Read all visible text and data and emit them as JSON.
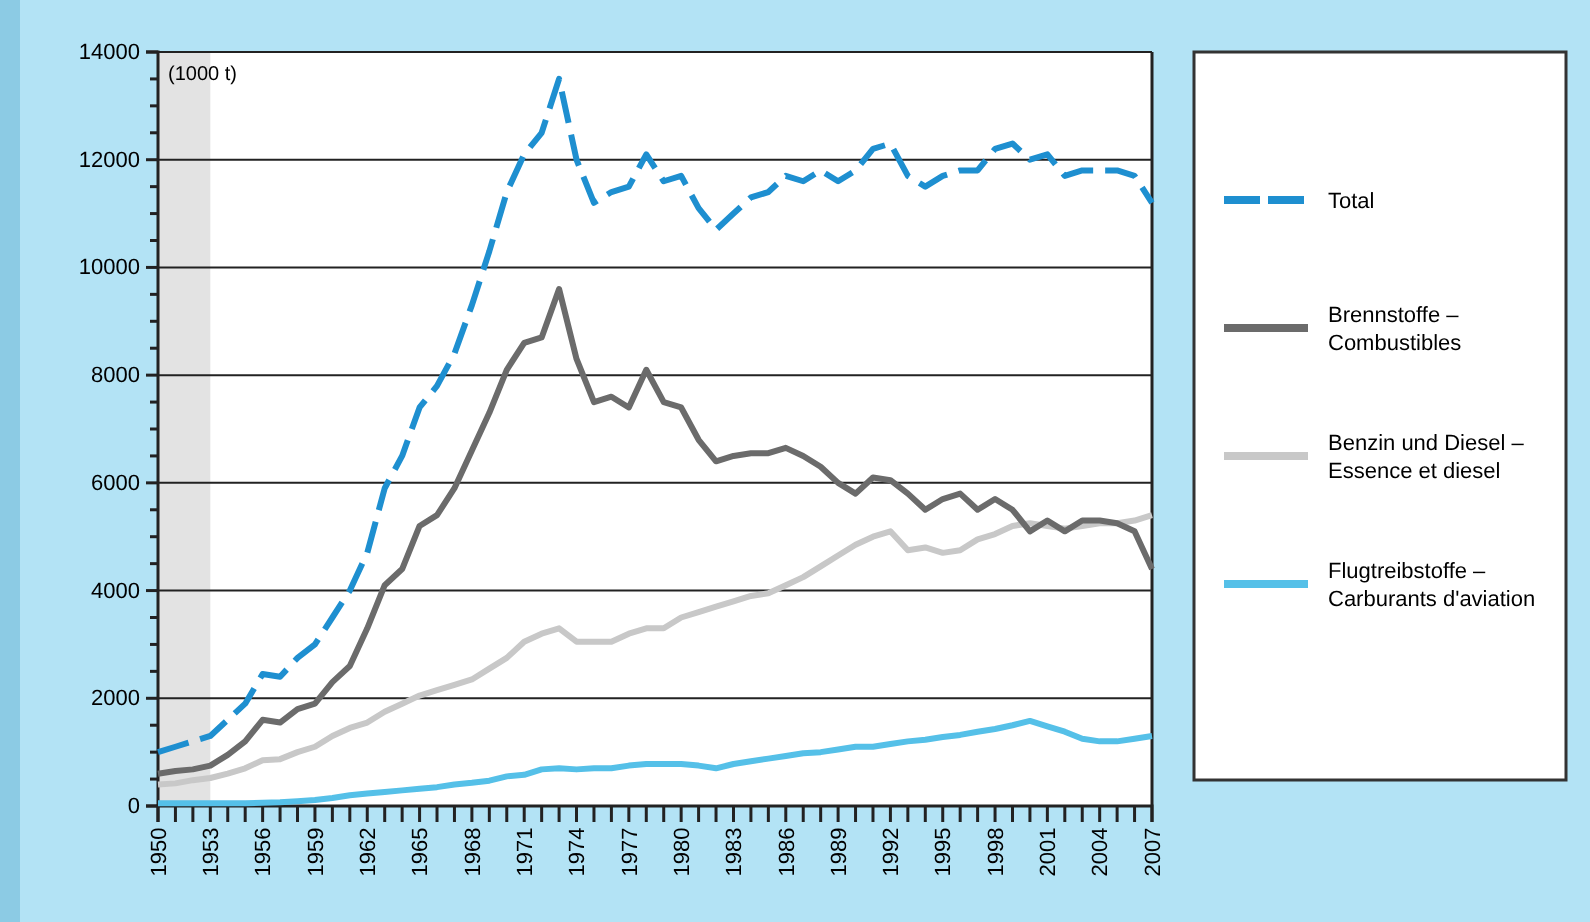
{
  "chart_data": {
    "type": "line",
    "ylabel": "(1000 t)",
    "x": [
      1950,
      1951,
      1952,
      1953,
      1954,
      1955,
      1956,
      1957,
      1958,
      1959,
      1960,
      1961,
      1962,
      1963,
      1964,
      1965,
      1966,
      1967,
      1968,
      1969,
      1970,
      1971,
      1972,
      1973,
      1974,
      1975,
      1976,
      1977,
      1978,
      1979,
      1980,
      1981,
      1982,
      1983,
      1984,
      1985,
      1986,
      1987,
      1988,
      1989,
      1990,
      1991,
      1992,
      1993,
      1994,
      1995,
      1996,
      1997,
      1998,
      1999,
      2000,
      2001,
      2002,
      2003,
      2004,
      2005,
      2006,
      2007
    ],
    "series": [
      {
        "name": "Total",
        "color": "#1e8fd0",
        "line_style": "dashed",
        "values": [
          1000,
          1100,
          1200,
          1300,
          1600,
          1900,
          2450,
          2400,
          2750,
          3000,
          3500,
          4000,
          4700,
          5900,
          6500,
          7400,
          7800,
          8400,
          9300,
          10300,
          11400,
          12100,
          12500,
          13500,
          12000,
          11200,
          11400,
          11500,
          12100,
          11600,
          11700,
          11100,
          10700,
          11000,
          11300,
          11400,
          11700,
          11600,
          11800,
          11600,
          11800,
          12200,
          12300,
          11700,
          11500,
          11700,
          11800,
          11800,
          12200,
          12300,
          12000,
          12100,
          11700,
          11800,
          11800,
          11800,
          11700,
          11200
        ]
      },
      {
        "name": "Brennstoffe – Combustibles",
        "color": "#6b6b6b",
        "line_style": "solid",
        "values": [
          600,
          650,
          680,
          750,
          950,
          1200,
          1600,
          1550,
          1800,
          1900,
          2300,
          2600,
          3300,
          4100,
          4400,
          5200,
          5400,
          5900,
          6600,
          7300,
          8100,
          8600,
          8700,
          9600,
          8300,
          7500,
          7600,
          7400,
          8100,
          7500,
          7400,
          6800,
          6400,
          6500,
          6550,
          6550,
          6650,
          6500,
          6300,
          6000,
          5800,
          6100,
          6050,
          5800,
          5500,
          5700,
          5800,
          5500,
          5700,
          5500,
          5100,
          5300,
          5100,
          5300,
          5300,
          5250,
          5100,
          4400
        ]
      },
      {
        "name": "Benzin und Diesel – Essence et diesel",
        "color": "#c8c8c8",
        "line_style": "solid",
        "values": [
          400,
          420,
          480,
          520,
          600,
          700,
          850,
          870,
          1000,
          1100,
          1300,
          1450,
          1550,
          1750,
          1900,
          2050,
          2150,
          2250,
          2350,
          2550,
          2750,
          3050,
          3200,
          3300,
          3050,
          3050,
          3050,
          3200,
          3300,
          3300,
          3500,
          3600,
          3700,
          3800,
          3900,
          3950,
          4100,
          4250,
          4450,
          4650,
          4850,
          5000,
          5100,
          4750,
          4800,
          4700,
          4750,
          4950,
          5050,
          5200,
          5250,
          5200,
          5150,
          5200,
          5250,
          5250,
          5300,
          5400
        ]
      },
      {
        "name": "Flugtreibstoffe – Carburants d'aviation",
        "color": "#55c0e8",
        "line_style": "solid",
        "values": [
          50,
          50,
          50,
          50,
          50,
          50,
          60,
          70,
          90,
          110,
          150,
          200,
          230,
          260,
          290,
          320,
          350,
          400,
          430,
          470,
          550,
          580,
          680,
          700,
          680,
          700,
          700,
          750,
          780,
          780,
          780,
          750,
          700,
          780,
          830,
          880,
          930,
          980,
          1000,
          1050,
          1100,
          1100,
          1150,
          1200,
          1230,
          1280,
          1320,
          1380,
          1430,
          1500,
          1580,
          1480,
          1380,
          1250,
          1200,
          1200,
          1250,
          1300
        ]
      }
    ],
    "xlim": [
      1950,
      2007
    ],
    "xticks": [
      1950,
      {
        "value": 1951,
        "label": null
      },
      {
        "value": 1952,
        "label": null
      },
      1953,
      {
        "value": 1954,
        "label": null
      },
      {
        "value": 1955,
        "label": null
      },
      1956,
      {
        "value": 1957,
        "label": null
      },
      {
        "value": 1958,
        "label": null
      },
      1959,
      {
        "value": 1960,
        "label": null
      },
      {
        "value": 1961,
        "label": null
      },
      1962,
      {
        "value": 1963,
        "label": null
      },
      {
        "value": 1964,
        "label": null
      },
      1965,
      {
        "value": 1966,
        "label": null
      },
      {
        "value": 1967,
        "label": null
      },
      1968,
      {
        "value": 1969,
        "label": null
      },
      {
        "value": 1970,
        "label": null
      },
      1971,
      {
        "value": 1972,
        "label": null
      },
      {
        "value": 1973,
        "label": null
      },
      1974,
      {
        "value": 1975,
        "label": null
      },
      {
        "value": 1976,
        "label": null
      },
      1977,
      {
        "value": 1978,
        "label": null
      },
      {
        "value": 1979,
        "label": null
      },
      1980,
      {
        "value": 1981,
        "label": null
      },
      {
        "value": 1982,
        "label": null
      },
      1983,
      {
        "value": 1984,
        "label": null
      },
      {
        "value": 1985,
        "label": null
      },
      1986,
      {
        "value": 1987,
        "label": null
      },
      {
        "value": 1988,
        "label": null
      },
      1989,
      {
        "value": 1990,
        "label": null
      },
      {
        "value": 1991,
        "label": null
      },
      1992,
      {
        "value": 1993,
        "label": null
      },
      {
        "value": 1994,
        "label": null
      },
      1995,
      {
        "value": 1996,
        "label": null
      },
      {
        "value": 1997,
        "label": null
      },
      1998,
      {
        "value": 1999,
        "label": null
      },
      {
        "value": 2000,
        "label": null
      },
      2001,
      {
        "value": 2002,
        "label": null
      },
      {
        "value": 2003,
        "label": null
      },
      2004,
      {
        "value": 2005,
        "label": null
      },
      {
        "value": 2006,
        "label": null
      },
      2007
    ],
    "ylim": [
      0,
      14000
    ],
    "yticks": [
      0,
      {
        "value": 500,
        "label": null
      },
      {
        "value": 1000,
        "label": null
      },
      {
        "value": 1500,
        "label": null
      },
      2000,
      {
        "value": 2500,
        "label": null
      },
      {
        "value": 3000,
        "label": null
      },
      {
        "value": 3500,
        "label": null
      },
      4000,
      {
        "value": 4500,
        "label": null
      },
      {
        "value": 5000,
        "label": null
      },
      {
        "value": 5500,
        "label": null
      },
      6000,
      {
        "value": 6500,
        "label": null
      },
      {
        "value": 7000,
        "label": null
      },
      {
        "value": 7500,
        "label": null
      },
      8000,
      {
        "value": 8500,
        "label": null
      },
      {
        "value": 9000,
        "label": null
      },
      {
        "value": 9500,
        "label": null
      },
      10000,
      {
        "value": 10500,
        "label": null
      },
      {
        "value": 11000,
        "label": null
      },
      {
        "value": 11500,
        "label": null
      },
      12000,
      {
        "value": 12500,
        "label": null
      },
      {
        "value": 13000,
        "label": null
      },
      {
        "value": 13500,
        "label": null
      },
      14000
    ],
    "bands": [
      {
        "axis": "x",
        "from": 1950,
        "to": 1953,
        "color": "#e3e3e3"
      }
    ],
    "grid": "y",
    "legend": "right"
  }
}
